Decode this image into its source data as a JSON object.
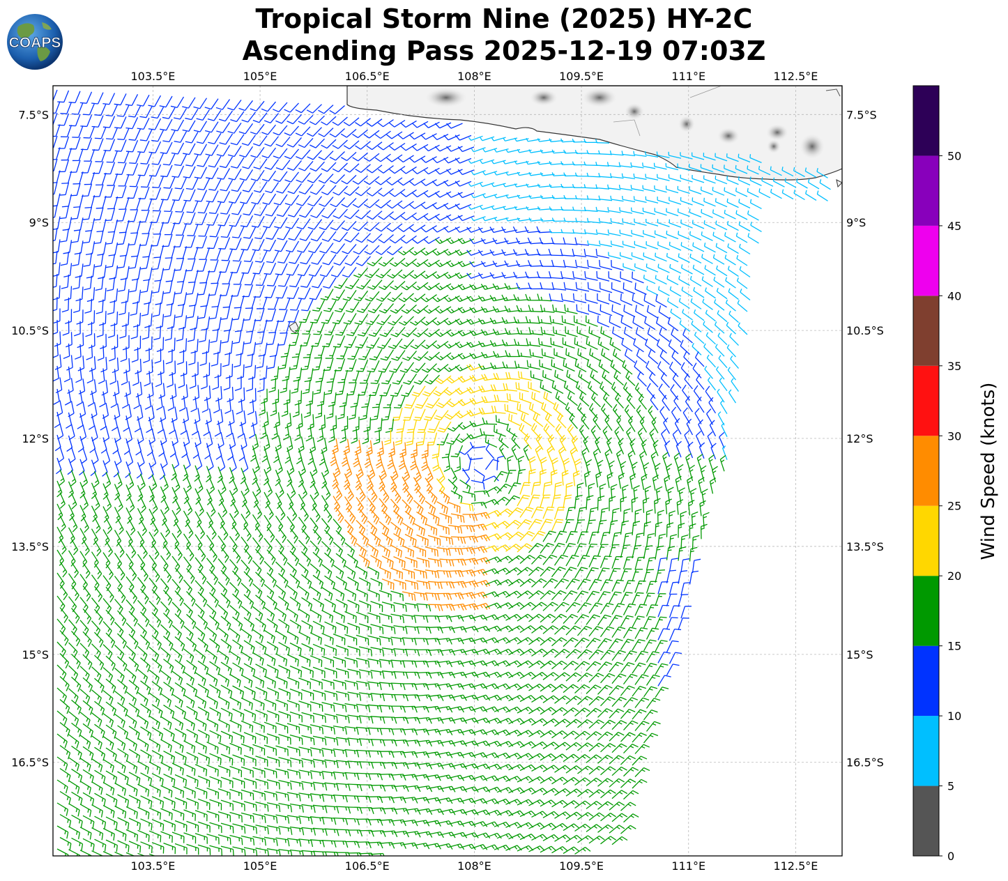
{
  "title": {
    "line1": "Tropical Storm Nine (2025) HY-2C",
    "line2": "Ascending Pass 2025-12-19 07:03Z"
  },
  "logo": {
    "text": "COAPS"
  },
  "map": {
    "type": "wind-barbs",
    "lon_range": [
      102.1,
      113.15
    ],
    "lat_range": [
      -17.8,
      -7.1
    ],
    "lon_ticks": [
      "103.5°E",
      "105°E",
      "106.5°E",
      "108°E",
      "109.5°E",
      "111°E",
      "112.5°E"
    ],
    "lon_tick_values": [
      103.5,
      105,
      106.5,
      108,
      109.5,
      111,
      112.5
    ],
    "lat_ticks": [
      "7.5°S",
      "9°S",
      "10.5°S",
      "12°S",
      "13.5°S",
      "15°S",
      "16.5°S"
    ],
    "lat_tick_values": [
      -7.5,
      -9,
      -10.5,
      -12,
      -13.5,
      -15,
      -16.5
    ],
    "gridlines": true,
    "storm_center": {
      "lon": 108.1,
      "lat": -12.35
    },
    "land": "Java (top right)"
  },
  "colorbar": {
    "label": "Wind Speed (knots)",
    "ticks": [
      "0",
      "5",
      "10",
      "15",
      "20",
      "25",
      "30",
      "35",
      "40",
      "45",
      "50"
    ],
    "bins": [
      {
        "from": 0,
        "to": 5,
        "color": "#555555"
      },
      {
        "from": 5,
        "to": 10,
        "color": "#00bfff"
      },
      {
        "from": 10,
        "to": 15,
        "color": "#0033ff"
      },
      {
        "from": 15,
        "to": 20,
        "color": "#009900"
      },
      {
        "from": 20,
        "to": 25,
        "color": "#ffd700"
      },
      {
        "from": 25,
        "to": 30,
        "color": "#ff8c00"
      },
      {
        "from": 30,
        "to": 35,
        "color": "#ff1111"
      },
      {
        "from": 35,
        "to": 40,
        "color": "#7f3f2f"
      },
      {
        "from": 40,
        "to": 45,
        "color": "#ee00ee"
      },
      {
        "from": 45,
        "to": 50,
        "color": "#8800bb"
      },
      {
        "from": 50,
        "to": 55,
        "color": "#2d0057"
      }
    ]
  }
}
